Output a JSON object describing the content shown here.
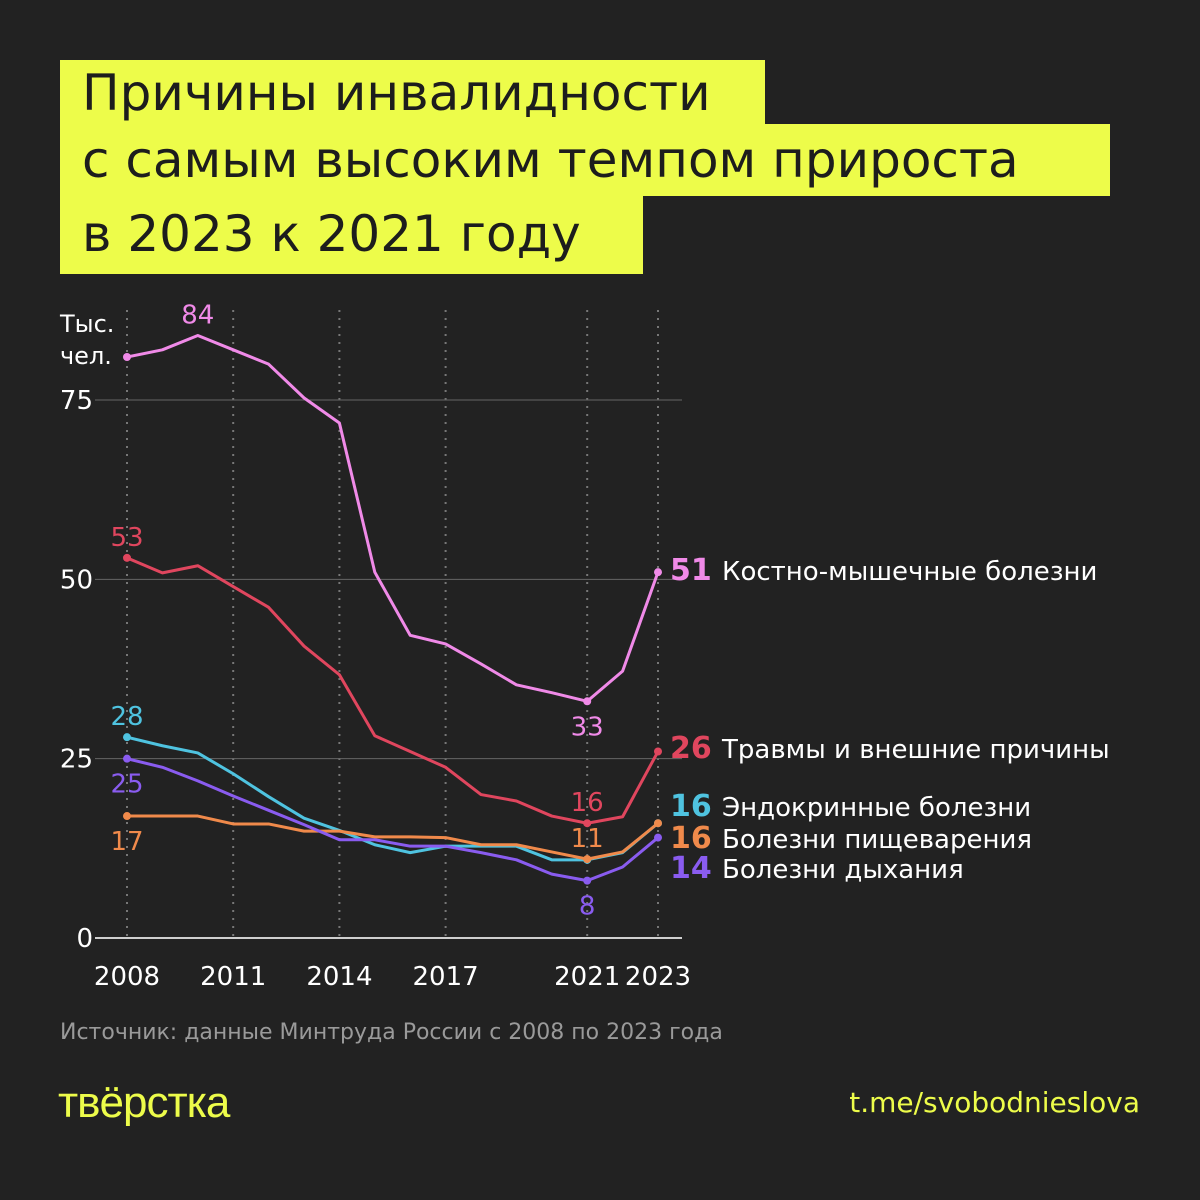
{
  "title_lines": [
    "Причины инвалидности",
    "с самым высоким темпом прироста",
    "в 2023 к 2021 году"
  ],
  "source": "Источник: данные Минтруда России с 2008 по 2023 года",
  "logo": "тверстка",
  "telegram": "t.me/svobodnieslova",
  "colors": {
    "background": "#222222",
    "accent": "#edfc4a"
  },
  "chart_data": {
    "type": "line",
    "ylabel": "Тыс. чел.",
    "ylabel_lines": [
      "Тыс.",
      "чел."
    ],
    "ylim": [
      0,
      84
    ],
    "yticks": [
      0,
      25,
      50,
      75
    ],
    "xticks": [
      2008,
      2011,
      2014,
      2017,
      2021,
      2023
    ],
    "grid": true,
    "x": [
      2008,
      2009,
      2010,
      2011,
      2012,
      2013,
      2014,
      2015,
      2016,
      2017,
      2018,
      2019,
      2020,
      2021,
      2022,
      2023
    ],
    "series": [
      {
        "name": "Костно-мышечные болезни",
        "color": "#f08ae8",
        "values": [
          81,
          82,
          84,
          82,
          80,
          75.3,
          71.8,
          51,
          42.2,
          41,
          38.2,
          35.3,
          34.2,
          33,
          37.2,
          51
        ],
        "end_label": "51"
      },
      {
        "name": "Травмы и внешние причины",
        "color": "#e0465e",
        "values": [
          53,
          50.9,
          51.9,
          49,
          46.1,
          40.7,
          36.7,
          28.2,
          26,
          23.8,
          20,
          19.1,
          17,
          16,
          16.9,
          26
        ],
        "end_label": "26"
      },
      {
        "name": "Эндокринные болезни",
        "color": "#4fc3e0",
        "values": [
          28,
          26.8,
          25.8,
          22.9,
          19.7,
          16.7,
          15,
          13,
          11.9,
          12.8,
          12.8,
          12.8,
          10.9,
          10.9,
          11.9,
          16
        ],
        "end_label": "16"
      },
      {
        "name": "Болезни пищеварения",
        "color": "#f08a4b",
        "values": [
          17,
          17,
          17,
          15.9,
          15.9,
          14.9,
          14.9,
          14.1,
          14.1,
          14,
          13,
          13,
          12,
          11,
          12,
          16
        ],
        "end_label": "16"
      },
      {
        "name": "Болезни дыхания",
        "color": "#8a5cf0",
        "values": [
          25,
          23.8,
          21.9,
          19.8,
          17.8,
          15.8,
          13.7,
          13.7,
          12.8,
          12.8,
          11.9,
          10.9,
          8.9,
          8,
          9.9,
          14
        ],
        "end_label": "14"
      }
    ],
    "annotations": [
      {
        "series": 0,
        "x": 2010,
        "text": "84",
        "pos": "above"
      },
      {
        "series": 0,
        "x": 2021,
        "text": "33",
        "pos": "below"
      },
      {
        "series": 1,
        "x": 2008,
        "text": "53",
        "pos": "above"
      },
      {
        "series": 1,
        "x": 2021,
        "text": "16",
        "pos": "above"
      },
      {
        "series": 2,
        "x": 2008,
        "text": "28",
        "pos": "above"
      },
      {
        "series": 4,
        "x": 2008,
        "text": "25",
        "pos": "below"
      },
      {
        "series": 3,
        "x": 2008,
        "text": "17",
        "pos": "below"
      },
      {
        "series": 3,
        "x": 2021,
        "text": "11",
        "pos": "above"
      },
      {
        "series": 4,
        "x": 2021,
        "text": "8",
        "pos": "below"
      }
    ]
  }
}
